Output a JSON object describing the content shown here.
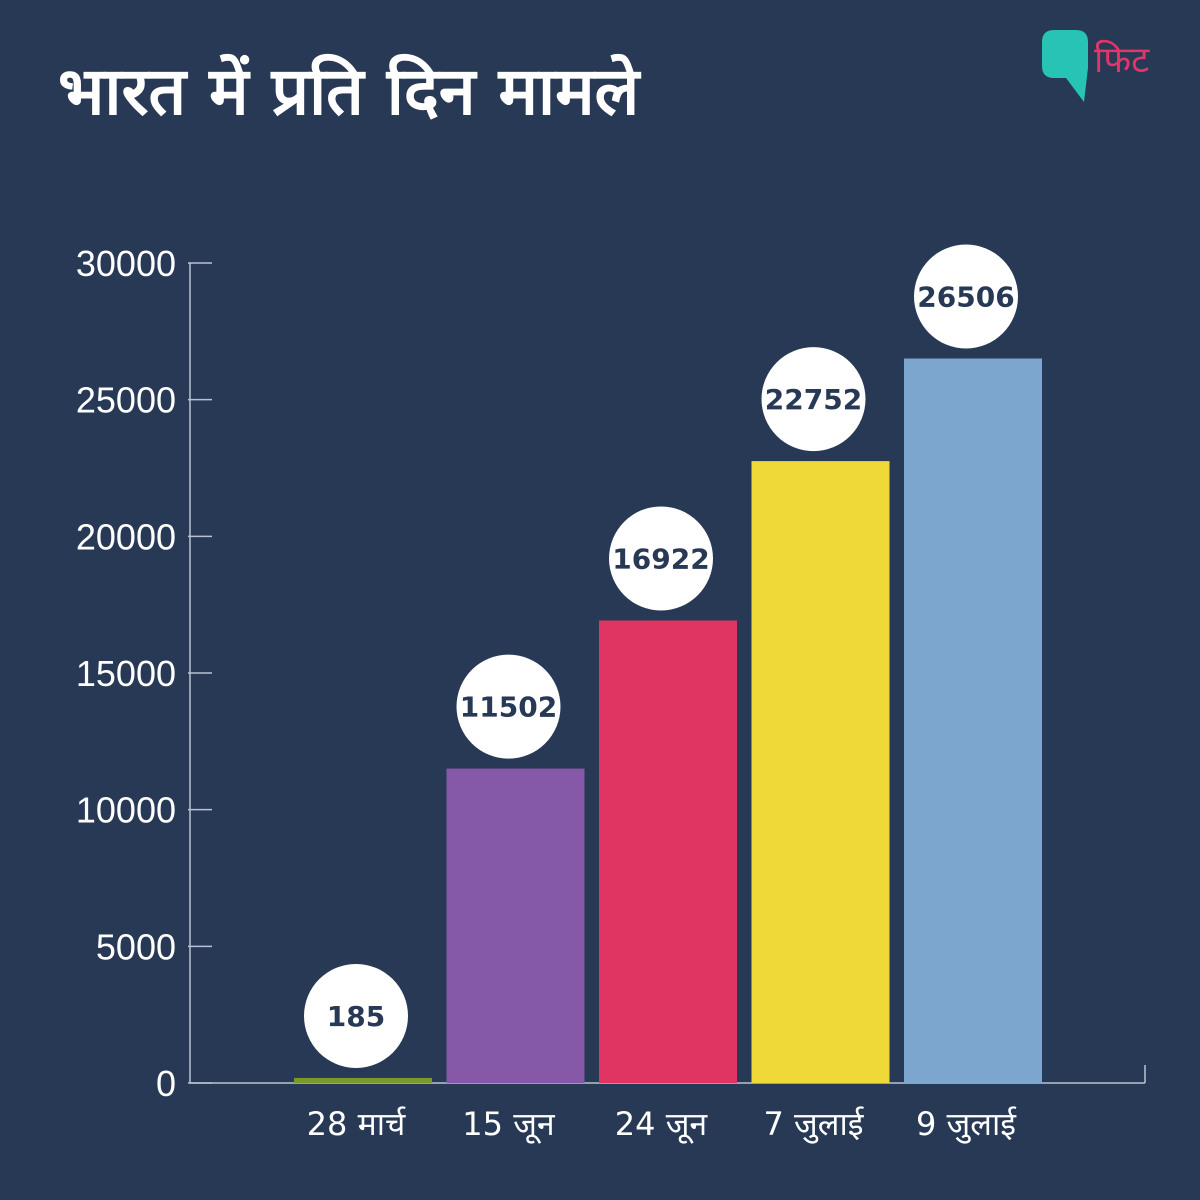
{
  "brand": {
    "name": "फिट",
    "icon": "speech-bubble-logo-icon",
    "icon_color": "#27c3b4",
    "text_color": "#e4346a"
  },
  "colors": {
    "background": "#283956",
    "axis": "#b8c2d4",
    "label_bubble": "#ffffff"
  },
  "chart_data": {
    "type": "bar",
    "title": "भारत में प्रति दिन मामले",
    "xlabel": "",
    "ylabel": "",
    "categories": [
      "28 मार्च",
      "15 जून",
      "24 जून",
      "7 जुलाई",
      "9 जुलाई"
    ],
    "values": [
      185,
      11502,
      16922,
      22752,
      26506
    ],
    "data_labels": [
      "185",
      "11502",
      "16922",
      "22752",
      "26506"
    ],
    "bar_colors": [
      "#7a9a2a",
      "#8659a8",
      "#e03562",
      "#eed938",
      "#7ca6ce"
    ],
    "ylim": [
      0,
      30000
    ],
    "yticks": [
      0,
      5000,
      10000,
      15000,
      20000,
      25000,
      30000
    ],
    "ytick_labels": [
      "0",
      "5000",
      "10000",
      "15000",
      "20000",
      "25000",
      "30000"
    ],
    "grid": false,
    "legend": "none"
  }
}
